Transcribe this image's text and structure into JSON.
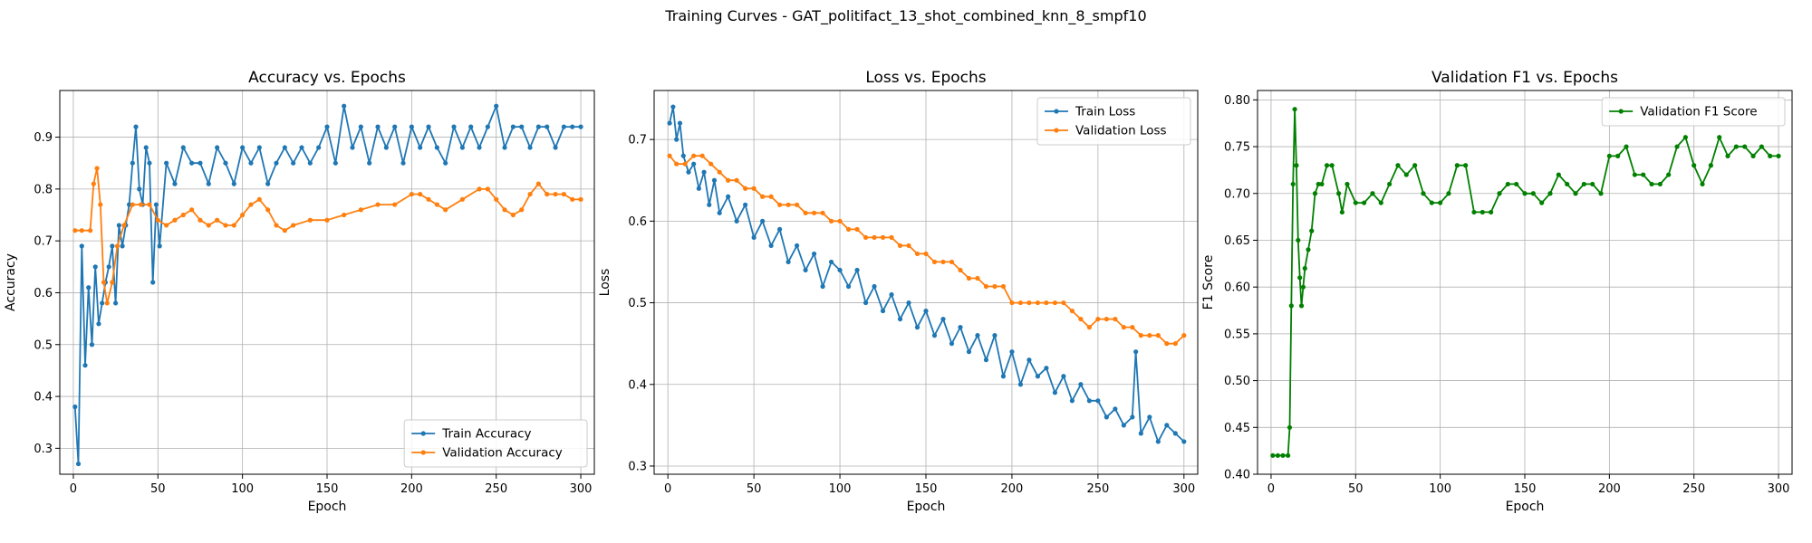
{
  "figure_title": "Training Curves - GAT_politifact_13_shot_combined_knn_8_smpf10",
  "colors": {
    "train": "#1f77b4",
    "validation": "#ff7f0e",
    "f1": "#008000",
    "grid": "#b0b0b0"
  },
  "chart_data": [
    {
      "type": "line",
      "title": "Accuracy vs. Epochs",
      "xlabel": "Epoch",
      "ylabel": "Accuracy",
      "xlim": [
        -8,
        308
      ],
      "ylim": [
        0.25,
        0.99
      ],
      "xticks": [
        0,
        50,
        100,
        150,
        200,
        250,
        300
      ],
      "yticks": [
        0.3,
        0.4,
        0.5,
        0.6,
        0.7,
        0.8,
        0.9
      ],
      "grid": true,
      "legend_position": "lower right",
      "series": [
        {
          "name": "Train Accuracy",
          "color": "#1f77b4",
          "x": [
            1,
            3,
            5,
            7,
            9,
            11,
            13,
            15,
            17,
            19,
            21,
            23,
            25,
            27,
            29,
            31,
            33,
            35,
            37,
            39,
            41,
            43,
            45,
            47,
            49,
            51,
            55,
            60,
            65,
            70,
            75,
            80,
            85,
            90,
            95,
            100,
            105,
            110,
            115,
            120,
            125,
            130,
            135,
            140,
            145,
            150,
            155,
            160,
            165,
            170,
            175,
            180,
            185,
            190,
            195,
            200,
            205,
            210,
            215,
            220,
            225,
            230,
            235,
            240,
            245,
            250,
            255,
            260,
            265,
            270,
            275,
            280,
            285,
            290,
            295,
            300
          ],
          "y": [
            0.38,
            0.27,
            0.69,
            0.46,
            0.61,
            0.5,
            0.65,
            0.54,
            0.58,
            0.62,
            0.65,
            0.69,
            0.58,
            0.73,
            0.69,
            0.73,
            0.77,
            0.85,
            0.92,
            0.8,
            0.77,
            0.88,
            0.85,
            0.62,
            0.77,
            0.69,
            0.85,
            0.81,
            0.88,
            0.85,
            0.85,
            0.81,
            0.88,
            0.85,
            0.81,
            0.88,
            0.85,
            0.88,
            0.81,
            0.85,
            0.88,
            0.85,
            0.88,
            0.85,
            0.88,
            0.92,
            0.85,
            0.96,
            0.88,
            0.92,
            0.85,
            0.92,
            0.88,
            0.92,
            0.85,
            0.92,
            0.88,
            0.92,
            0.88,
            0.85,
            0.92,
            0.88,
            0.92,
            0.88,
            0.92,
            0.96,
            0.88,
            0.92,
            0.92,
            0.88,
            0.92,
            0.92,
            0.88,
            0.92,
            0.92,
            0.92
          ]
        },
        {
          "name": "Validation Accuracy",
          "color": "#ff7f0e",
          "x": [
            1,
            5,
            10,
            12,
            14,
            16,
            18,
            20,
            23,
            26,
            30,
            35,
            40,
            45,
            50,
            55,
            60,
            65,
            70,
            75,
            80,
            85,
            90,
            95,
            100,
            105,
            110,
            115,
            120,
            125,
            130,
            140,
            150,
            160,
            170,
            180,
            190,
            200,
            205,
            210,
            215,
            220,
            230,
            240,
            245,
            250,
            255,
            260,
            265,
            270,
            275,
            280,
            285,
            290,
            295,
            300
          ],
          "y": [
            0.72,
            0.72,
            0.72,
            0.81,
            0.84,
            0.77,
            0.62,
            0.58,
            0.62,
            0.69,
            0.73,
            0.77,
            0.77,
            0.77,
            0.74,
            0.73,
            0.74,
            0.75,
            0.76,
            0.74,
            0.73,
            0.74,
            0.73,
            0.73,
            0.75,
            0.77,
            0.78,
            0.76,
            0.73,
            0.72,
            0.73,
            0.74,
            0.74,
            0.75,
            0.76,
            0.77,
            0.77,
            0.79,
            0.79,
            0.78,
            0.77,
            0.76,
            0.78,
            0.8,
            0.8,
            0.78,
            0.76,
            0.75,
            0.76,
            0.79,
            0.81,
            0.79,
            0.79,
            0.79,
            0.78,
            0.78
          ]
        }
      ]
    },
    {
      "type": "line",
      "title": "Loss vs. Epochs",
      "xlabel": "Epoch",
      "ylabel": "Loss",
      "xlim": [
        -8,
        308
      ],
      "ylim": [
        0.29,
        0.76
      ],
      "xticks": [
        0,
        50,
        100,
        150,
        200,
        250,
        300
      ],
      "yticks": [
        0.3,
        0.4,
        0.5,
        0.6,
        0.7
      ],
      "grid": true,
      "legend_position": "upper right",
      "series": [
        {
          "name": "Train Loss",
          "color": "#1f77b4",
          "x": [
            1,
            3,
            5,
            7,
            9,
            12,
            15,
            18,
            21,
            24,
            27,
            30,
            35,
            40,
            45,
            50,
            55,
            60,
            65,
            70,
            75,
            80,
            85,
            90,
            95,
            100,
            105,
            110,
            115,
            120,
            125,
            130,
            135,
            140,
            145,
            150,
            155,
            160,
            165,
            170,
            175,
            180,
            185,
            190,
            195,
            200,
            205,
            210,
            215,
            220,
            225,
            230,
            235,
            240,
            245,
            250,
            255,
            260,
            265,
            270,
            272,
            275,
            280,
            285,
            290,
            295,
            300
          ],
          "y": [
            0.72,
            0.74,
            0.7,
            0.72,
            0.68,
            0.66,
            0.67,
            0.64,
            0.66,
            0.62,
            0.65,
            0.61,
            0.63,
            0.6,
            0.62,
            0.58,
            0.6,
            0.57,
            0.59,
            0.55,
            0.57,
            0.54,
            0.56,
            0.52,
            0.55,
            0.54,
            0.52,
            0.54,
            0.5,
            0.52,
            0.49,
            0.51,
            0.48,
            0.5,
            0.47,
            0.49,
            0.46,
            0.48,
            0.45,
            0.47,
            0.44,
            0.46,
            0.43,
            0.46,
            0.41,
            0.44,
            0.4,
            0.43,
            0.41,
            0.42,
            0.39,
            0.41,
            0.38,
            0.4,
            0.38,
            0.38,
            0.36,
            0.37,
            0.35,
            0.36,
            0.44,
            0.34,
            0.36,
            0.33,
            0.35,
            0.34,
            0.33
          ]
        },
        {
          "name": "Validation Loss",
          "color": "#ff7f0e",
          "x": [
            1,
            5,
            10,
            15,
            20,
            25,
            30,
            35,
            40,
            45,
            50,
            55,
            60,
            65,
            70,
            75,
            80,
            85,
            90,
            95,
            100,
            105,
            110,
            115,
            120,
            125,
            130,
            135,
            140,
            145,
            150,
            155,
            160,
            165,
            170,
            175,
            180,
            185,
            190,
            195,
            200,
            205,
            210,
            215,
            220,
            225,
            230,
            235,
            240,
            245,
            250,
            255,
            260,
            265,
            270,
            275,
            280,
            285,
            290,
            295,
            300
          ],
          "y": [
            0.68,
            0.67,
            0.67,
            0.68,
            0.68,
            0.67,
            0.66,
            0.65,
            0.65,
            0.64,
            0.64,
            0.63,
            0.63,
            0.62,
            0.62,
            0.62,
            0.61,
            0.61,
            0.61,
            0.6,
            0.6,
            0.59,
            0.59,
            0.58,
            0.58,
            0.58,
            0.58,
            0.57,
            0.57,
            0.56,
            0.56,
            0.55,
            0.55,
            0.55,
            0.54,
            0.53,
            0.53,
            0.52,
            0.52,
            0.52,
            0.5,
            0.5,
            0.5,
            0.5,
            0.5,
            0.5,
            0.5,
            0.49,
            0.48,
            0.47,
            0.48,
            0.48,
            0.48,
            0.47,
            0.47,
            0.46,
            0.46,
            0.46,
            0.45,
            0.45,
            0.46
          ]
        }
      ]
    },
    {
      "type": "line",
      "title": "Validation F1 vs. Epochs",
      "xlabel": "Epoch",
      "ylabel": "F1 Score",
      "xlim": [
        -8,
        308
      ],
      "ylim": [
        0.4,
        0.81
      ],
      "xticks": [
        0,
        50,
        100,
        150,
        200,
        250,
        300
      ],
      "yticks": [
        0.4,
        0.45,
        0.5,
        0.55,
        0.6,
        0.65,
        0.7,
        0.75,
        0.8
      ],
      "grid": true,
      "legend_position": "upper right",
      "series": [
        {
          "name": "Validation F1 Score",
          "color": "#008000",
          "x": [
            1,
            4,
            7,
            10,
            11,
            12,
            13,
            14,
            15,
            16,
            17,
            18,
            19,
            20,
            22,
            24,
            26,
            28,
            30,
            33,
            36,
            40,
            42,
            45,
            50,
            55,
            60,
            65,
            70,
            75,
            80,
            85,
            90,
            95,
            100,
            105,
            110,
            115,
            120,
            125,
            130,
            135,
            140,
            145,
            150,
            155,
            160,
            165,
            170,
            175,
            180,
            185,
            190,
            195,
            200,
            205,
            210,
            215,
            220,
            225,
            230,
            235,
            240,
            245,
            250,
            255,
            260,
            265,
            270,
            275,
            280,
            285,
            290,
            295,
            300
          ],
          "y": [
            0.42,
            0.42,
            0.42,
            0.42,
            0.45,
            0.58,
            0.71,
            0.79,
            0.73,
            0.65,
            0.61,
            0.58,
            0.6,
            0.62,
            0.64,
            0.66,
            0.7,
            0.71,
            0.71,
            0.73,
            0.73,
            0.7,
            0.68,
            0.71,
            0.69,
            0.69,
            0.7,
            0.69,
            0.71,
            0.73,
            0.72,
            0.73,
            0.7,
            0.69,
            0.69,
            0.7,
            0.73,
            0.73,
            0.68,
            0.68,
            0.68,
            0.7,
            0.71,
            0.71,
            0.7,
            0.7,
            0.69,
            0.7,
            0.72,
            0.71,
            0.7,
            0.71,
            0.71,
            0.7,
            0.74,
            0.74,
            0.75,
            0.72,
            0.72,
            0.71,
            0.71,
            0.72,
            0.75,
            0.76,
            0.73,
            0.71,
            0.73,
            0.76,
            0.74,
            0.75,
            0.75,
            0.74,
            0.75,
            0.74,
            0.74
          ]
        }
      ]
    }
  ]
}
